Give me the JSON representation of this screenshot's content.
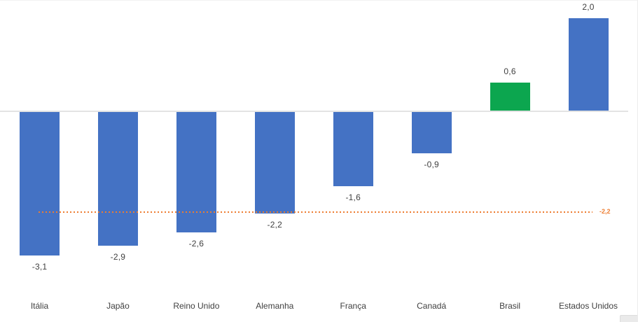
{
  "chart_data": {
    "type": "bar",
    "title": "",
    "xlabel": "",
    "ylabel": "",
    "categories": [
      "Itália",
      "Japão",
      "Reino Unido",
      "Alemanha",
      "França",
      "Canadá",
      "Brasil",
      "Estados Unidos"
    ],
    "values": [
      -3.1,
      -2.9,
      -2.6,
      -2.2,
      -1.6,
      -0.9,
      0.6,
      2.0
    ],
    "value_labels": [
      "-3,1",
      "-2,9",
      "-2,6",
      "-2,2",
      "-1,6",
      "-0,9",
      "0,6",
      "2,0"
    ],
    "bar_colors": [
      "#4472C4",
      "#4472C4",
      "#4472C4",
      "#4472C4",
      "#4472C4",
      "#4472C4",
      "#0CA64F",
      "#4472C4"
    ],
    "reference_line": {
      "value": -2.2,
      "label": "-2,2",
      "color": "#ED7D31",
      "style": "dotted"
    },
    "colors": {
      "bar_default": "#4472C4",
      "bar_highlight": "#0CA64F",
      "reference": "#ED7D31",
      "axis_line": "#E3E3E3",
      "label_text": "#404040"
    },
    "ylim": [
      -3.5,
      2.2
    ],
    "grid": false,
    "legend": false,
    "value_format": "comma-decimal",
    "axis_tick_labels_visible": false
  }
}
